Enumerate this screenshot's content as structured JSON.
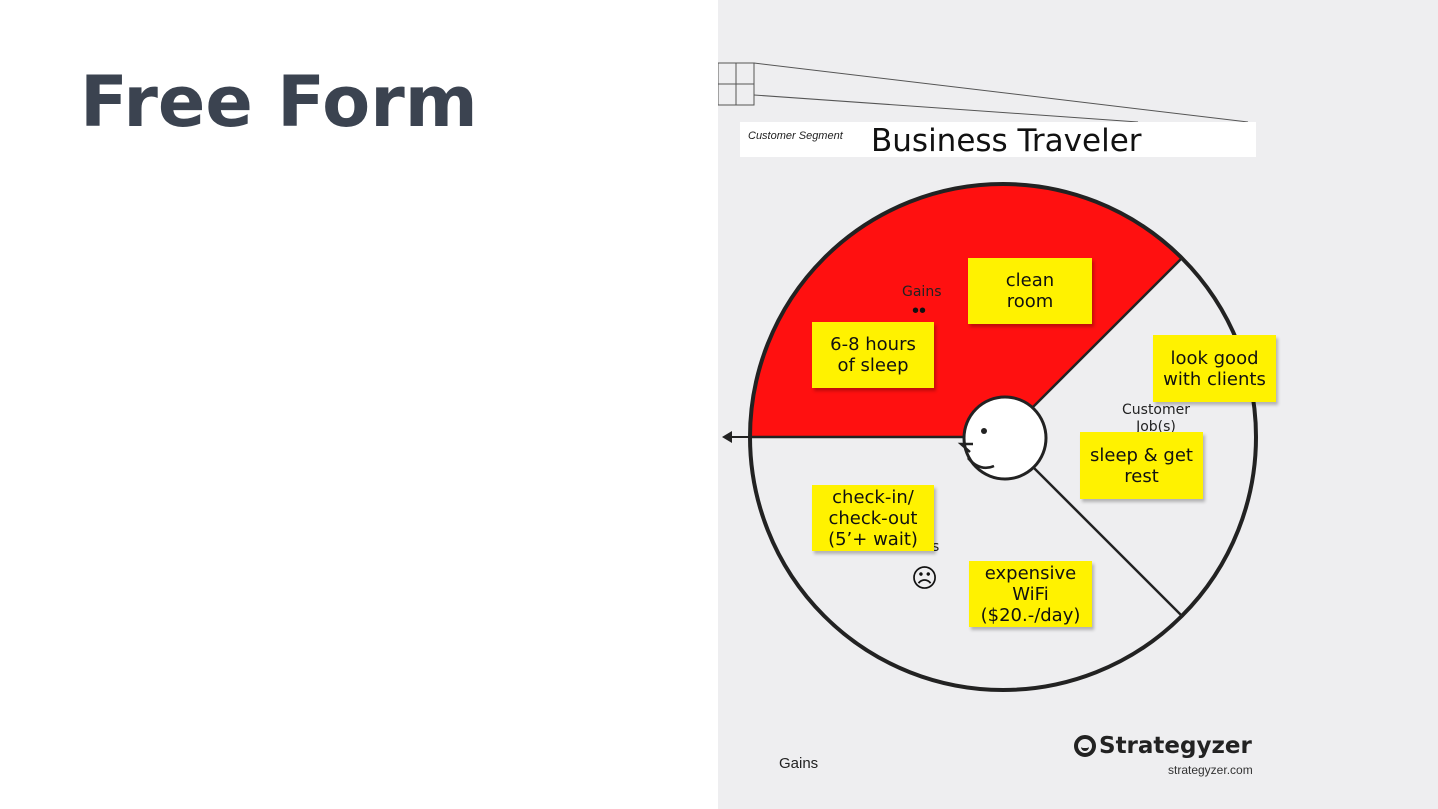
{
  "slide": {
    "title": "Free Form"
  },
  "canvas": {
    "segment_label": "Customer Segment",
    "segment_title": "Business Traveler",
    "gains_label": "Gains",
    "pains_label_partial": "s",
    "jobs_label_line1": "Customer",
    "jobs_label_line2": "Job(s)",
    "bottom_label": "Gains",
    "brand_name": "Strategyzer",
    "brand_url": "strategyzer.com",
    "colors": {
      "gains_fill": "#ff1010",
      "sticky": "#fff200",
      "panel": "#eeeef0"
    },
    "icons": {
      "smile": "smile-icon",
      "frown": "frown-icon",
      "face": "face-icon",
      "arrow": "arrow-left-icon"
    },
    "stickies": {
      "clean_room": "clean\nroom",
      "sleep_hours": "6-8 hours\nof sleep",
      "look_good": "look good\nwith clients",
      "sleep_rest": "sleep & get\nrest",
      "check_in": "check-in/\ncheck-out\n(5’+ wait)",
      "wifi": "expensive\nWiFi\n($20.-/day)"
    }
  }
}
